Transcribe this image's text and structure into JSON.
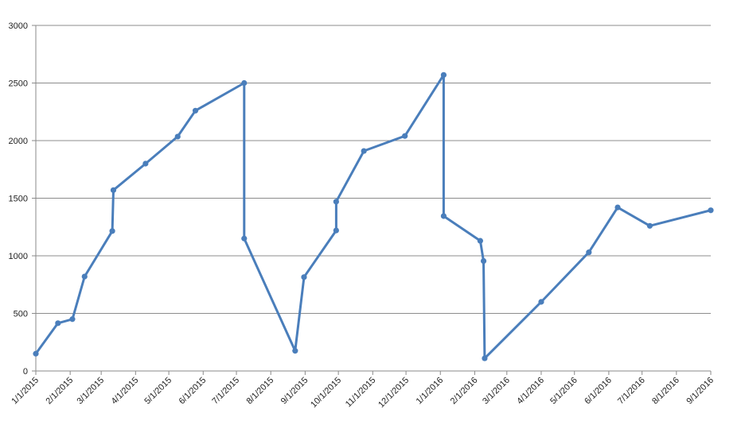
{
  "chart_data": {
    "type": "line",
    "title": "",
    "xlabel": "",
    "ylabel": "",
    "x_axis": "date",
    "xlim": [
      "2015-01-01",
      "2016-09-01"
    ],
    "ylim": [
      0,
      3000
    ],
    "y_ticks": [
      0,
      500,
      1000,
      1500,
      2000,
      2500,
      3000
    ],
    "y_tick_labels": [
      "0",
      "500",
      "1000",
      "1500",
      "2000",
      "2500",
      "3000"
    ],
    "x_ticks": [
      "2015-01-01",
      "2015-02-01",
      "2015-03-01",
      "2015-04-01",
      "2015-05-01",
      "2015-06-01",
      "2015-07-01",
      "2015-08-01",
      "2015-09-01",
      "2015-10-01",
      "2015-11-01",
      "2015-12-01",
      "2016-01-01",
      "2016-02-01",
      "2016-03-01",
      "2016-04-01",
      "2016-05-01",
      "2016-06-01",
      "2016-07-01",
      "2016-08-01",
      "2016-09-01"
    ],
    "x_tick_labels": [
      "1/1/2015",
      "2/1/2015",
      "3/1/2015",
      "4/1/2015",
      "5/1/2015",
      "6/1/2015",
      "7/1/2015",
      "8/1/2015",
      "9/1/2015",
      "10/1/2015",
      "11/1/2015",
      "12/1/2015",
      "1/1/2016",
      "2/1/2016",
      "3/1/2016",
      "4/1/2016",
      "5/1/2016",
      "6/1/2016",
      "7/1/2016",
      "8/1/2016",
      "9/1/2016"
    ],
    "grid": "horizontal",
    "legend": "none",
    "color": "#4a7ebb",
    "series": [
      {
        "points": [
          {
            "x": "2015-01-01",
            "y": 150
          },
          {
            "x": "2015-01-21",
            "y": 415
          },
          {
            "x": "2015-02-03",
            "y": 450
          },
          {
            "x": "2015-02-14",
            "y": 820
          },
          {
            "x": "2015-03-11",
            "y": 1215
          },
          {
            "x": "2015-03-12",
            "y": 1570
          },
          {
            "x": "2015-04-10",
            "y": 1800
          },
          {
            "x": "2015-05-09",
            "y": 2035
          },
          {
            "x": "2015-05-25",
            "y": 2260
          },
          {
            "x": "2015-07-08",
            "y": 2500
          },
          {
            "x": "2015-07-08",
            "y": 1150
          },
          {
            "x": "2015-08-23",
            "y": 175
          },
          {
            "x": "2015-08-31",
            "y": 815
          },
          {
            "x": "2015-09-29",
            "y": 1220
          },
          {
            "x": "2015-09-29",
            "y": 1470
          },
          {
            "x": "2015-10-24",
            "y": 1910
          },
          {
            "x": "2015-11-30",
            "y": 2040
          },
          {
            "x": "2016-01-04",
            "y": 2570
          },
          {
            "x": "2016-01-04",
            "y": 1345
          },
          {
            "x": "2016-02-06",
            "y": 1130
          },
          {
            "x": "2016-02-09",
            "y": 955
          },
          {
            "x": "2016-02-10",
            "y": 110
          },
          {
            "x": "2016-04-01",
            "y": 600
          },
          {
            "x": "2016-05-14",
            "y": 1030
          },
          {
            "x": "2016-06-09",
            "y": 1420
          },
          {
            "x": "2016-07-08",
            "y": 1260
          },
          {
            "x": "2016-09-01",
            "y": 1395
          }
        ]
      }
    ]
  }
}
